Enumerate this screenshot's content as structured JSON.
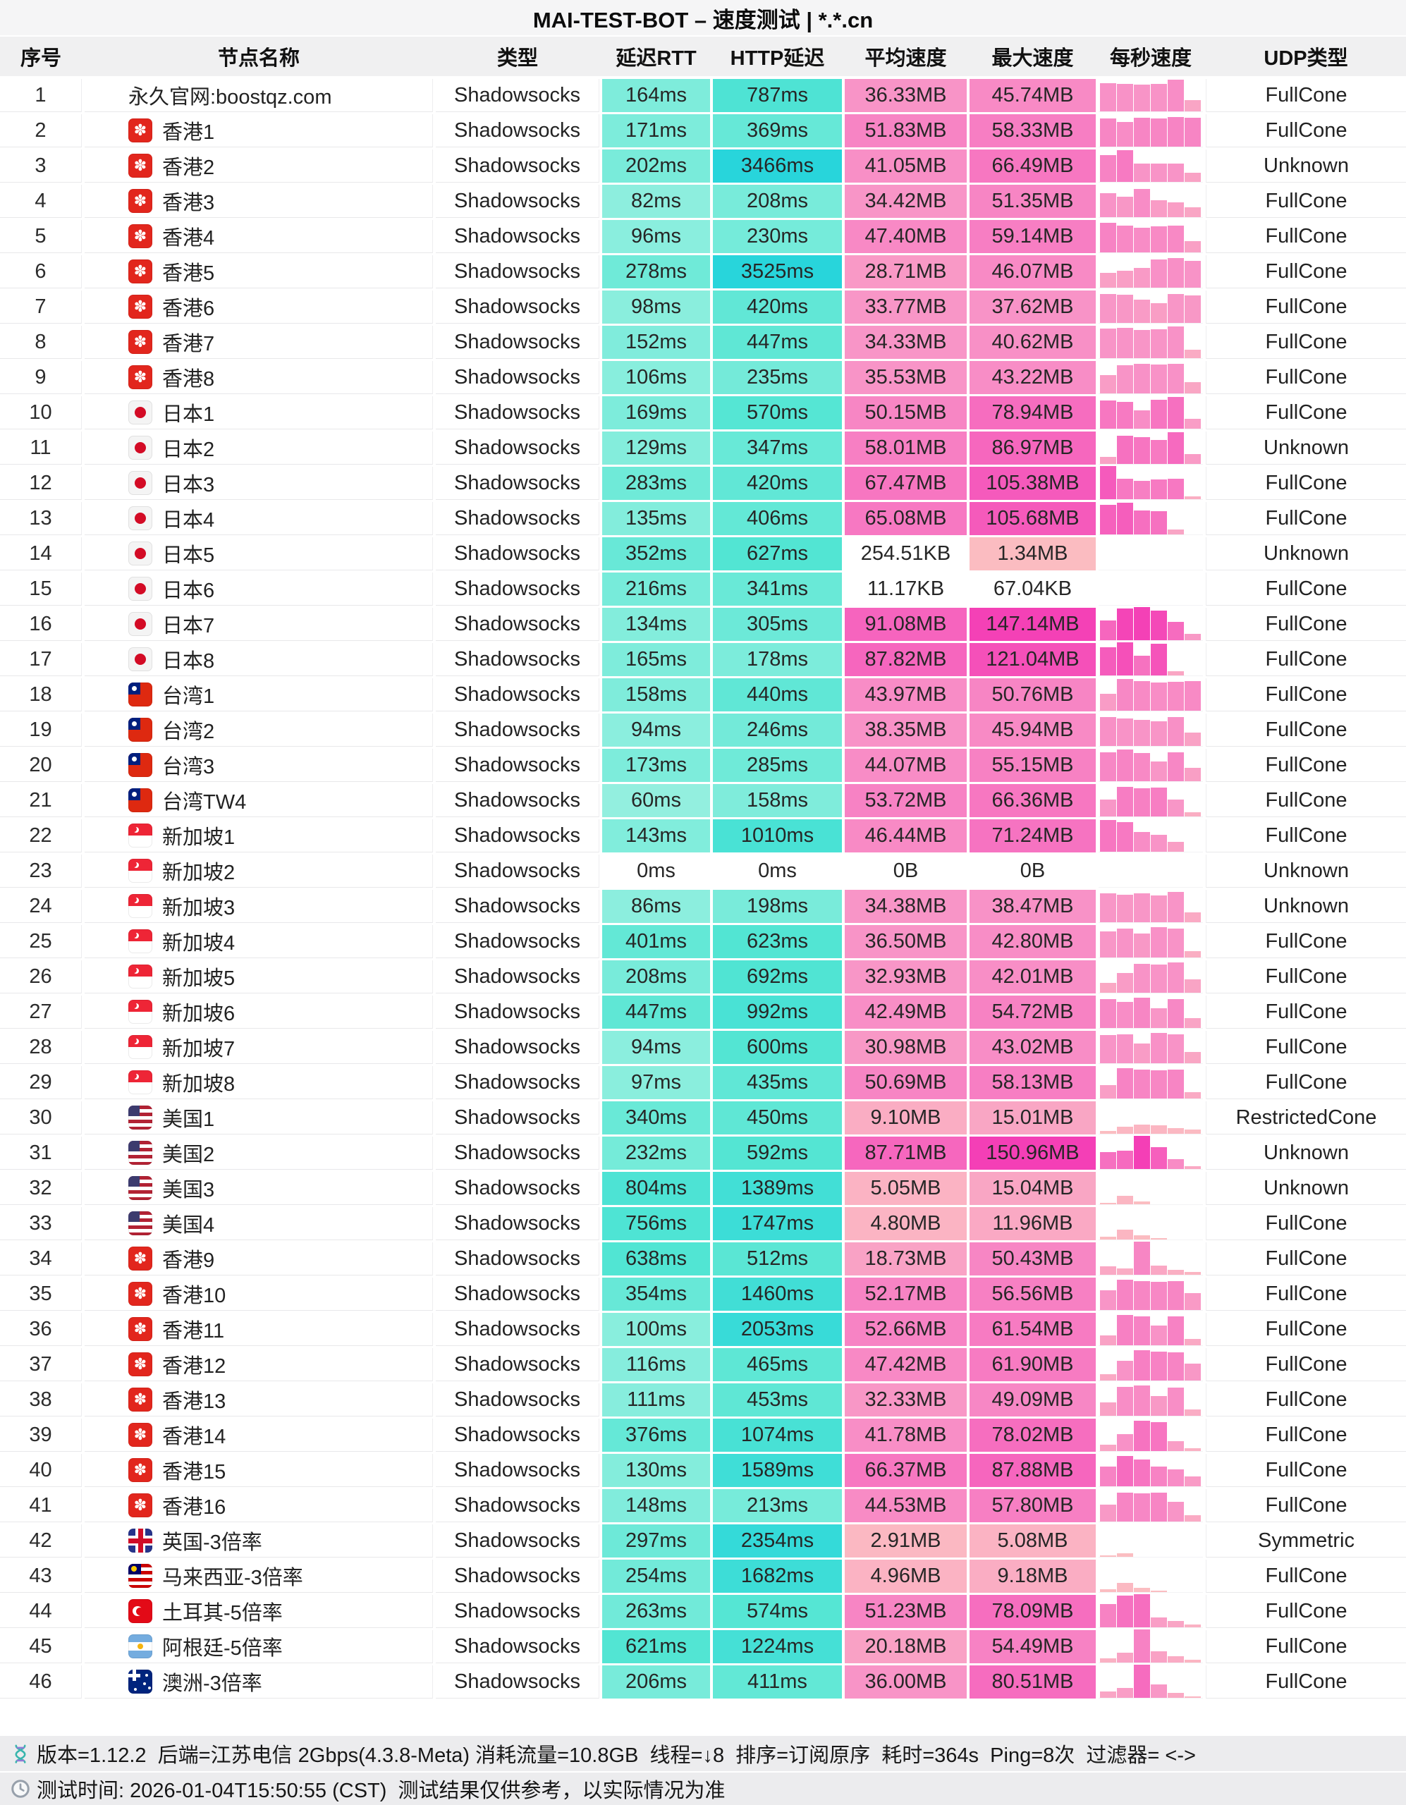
{
  "title": "MAI-TEST-BOT – 速度测试 | *.*.cn",
  "columns": [
    {
      "key": "seq",
      "label": "序号"
    },
    {
      "key": "name",
      "label": "节点名称"
    },
    {
      "key": "type",
      "label": "类型"
    },
    {
      "key": "rtt",
      "label": "延迟RTT"
    },
    {
      "key": "http",
      "label": "HTTP延迟"
    },
    {
      "key": "avg",
      "label": "平均速度"
    },
    {
      "key": "max",
      "label": "最大速度"
    },
    {
      "key": "persec",
      "label": "每秒速度"
    },
    {
      "key": "udp",
      "label": "UDP类型"
    }
  ],
  "colors": {
    "titlebar_bg": "#f5f5f6",
    "header_bg": "#f0f0f1",
    "footer_bg": "#ececee",
    "hairline": "#e8e8ea",
    "teal_ramp": [
      "#BDF6E7",
      "#52E5D3",
      "#28D5DB"
    ],
    "pink_ramp": [
      "#FCC6C0",
      "#F893C7",
      "#F43FB6"
    ]
  },
  "rows": [
    {
      "seq": 1,
      "flag": null,
      "name": "永久官网:boostqz.com",
      "type": "Shadowsocks",
      "rtt": "164ms",
      "rtt_v": 164,
      "http": "787ms",
      "http_v": 787,
      "avg": "36.33MB",
      "avg_v": 36.33,
      "max": "45.74MB",
      "max_v": 45.74,
      "udp": "FullCone",
      "bars": [
        0.86,
        0.84,
        0.8,
        0.82,
        0.95,
        0.35
      ]
    },
    {
      "seq": 2,
      "flag": "hk",
      "name": "香港1",
      "type": "Shadowsocks",
      "rtt": "171ms",
      "rtt_v": 171,
      "http": "369ms",
      "http_v": 369,
      "avg": "51.83MB",
      "avg_v": 51.83,
      "max": "58.33MB",
      "max_v": 58.33,
      "udp": "FullCone",
      "bars": [
        0.85,
        0.75,
        0.88,
        0.86,
        0.9,
        0.88
      ]
    },
    {
      "seq": 3,
      "flag": "hk",
      "name": "香港2",
      "type": "Shadowsocks",
      "rtt": "202ms",
      "rtt_v": 202,
      "http": "3466ms",
      "http_v": 3466,
      "avg": "41.05MB",
      "avg_v": 41.05,
      "max": "66.49MB",
      "max_v": 66.49,
      "udp": "Unknown",
      "bars": [
        0.8,
        0.95,
        0.55,
        0.55,
        0.55,
        0.28
      ]
    },
    {
      "seq": 4,
      "flag": "hk",
      "name": "香港3",
      "type": "Shadowsocks",
      "rtt": "82ms",
      "rtt_v": 82,
      "http": "208ms",
      "http_v": 208,
      "avg": "34.42MB",
      "avg_v": 34.42,
      "max": "51.35MB",
      "max_v": 51.35,
      "udp": "FullCone",
      "bars": [
        0.72,
        0.62,
        0.85,
        0.5,
        0.45,
        0.3
      ]
    },
    {
      "seq": 5,
      "flag": "hk",
      "name": "香港4",
      "type": "Shadowsocks",
      "rtt": "96ms",
      "rtt_v": 96,
      "http": "230ms",
      "http_v": 230,
      "avg": "47.40MB",
      "avg_v": 47.4,
      "max": "59.14MB",
      "max_v": 59.14,
      "udp": "FullCone",
      "bars": [
        0.9,
        0.8,
        0.75,
        0.78,
        0.8,
        0.35
      ]
    },
    {
      "seq": 6,
      "flag": "hk",
      "name": "香港5",
      "type": "Shadowsocks",
      "rtt": "278ms",
      "rtt_v": 278,
      "http": "3525ms",
      "http_v": 3525,
      "avg": "28.71MB",
      "avg_v": 28.71,
      "max": "46.07MB",
      "max_v": 46.07,
      "udp": "FullCone",
      "bars": [
        0.45,
        0.5,
        0.6,
        0.85,
        0.9,
        0.8
      ]
    },
    {
      "seq": 7,
      "flag": "hk",
      "name": "香港6",
      "type": "Shadowsocks",
      "rtt": "98ms",
      "rtt_v": 98,
      "http": "420ms",
      "http_v": 420,
      "avg": "33.77MB",
      "avg_v": 33.77,
      "max": "37.62MB",
      "max_v": 37.62,
      "udp": "FullCone",
      "bars": [
        0.88,
        0.85,
        0.7,
        0.6,
        0.88,
        0.82
      ]
    },
    {
      "seq": 8,
      "flag": "hk",
      "name": "香港7",
      "type": "Shadowsocks",
      "rtt": "152ms",
      "rtt_v": 152,
      "http": "447ms",
      "http_v": 447,
      "avg": "34.33MB",
      "avg_v": 34.33,
      "max": "40.62MB",
      "max_v": 40.62,
      "udp": "FullCone",
      "bars": [
        0.9,
        0.92,
        0.85,
        0.88,
        0.95,
        0.25
      ]
    },
    {
      "seq": 9,
      "flag": "hk",
      "name": "香港8",
      "type": "Shadowsocks",
      "rtt": "106ms",
      "rtt_v": 106,
      "http": "235ms",
      "http_v": 235,
      "avg": "35.53MB",
      "avg_v": 35.53,
      "max": "43.22MB",
      "max_v": 43.22,
      "udp": "FullCone",
      "bars": [
        0.55,
        0.85,
        0.9,
        0.88,
        0.9,
        0.35
      ]
    },
    {
      "seq": 10,
      "flag": "jp",
      "name": "日本1",
      "type": "Shadowsocks",
      "rtt": "169ms",
      "rtt_v": 169,
      "http": "570ms",
      "http_v": 570,
      "avg": "50.15MB",
      "avg_v": 50.15,
      "max": "78.94MB",
      "max_v": 78.94,
      "udp": "FullCone",
      "bars": [
        0.85,
        0.8,
        0.55,
        0.88,
        0.95,
        0.3
      ]
    },
    {
      "seq": 11,
      "flag": "jp",
      "name": "日本2",
      "type": "Shadowsocks",
      "rtt": "129ms",
      "rtt_v": 129,
      "http": "347ms",
      "http_v": 347,
      "avg": "58.01MB",
      "avg_v": 58.01,
      "max": "86.97MB",
      "max_v": 86.97,
      "udp": "Unknown",
      "bars": [
        0.22,
        0.85,
        0.8,
        0.72,
        0.95,
        0.3
      ]
    },
    {
      "seq": 12,
      "flag": "jp",
      "name": "日本3",
      "type": "Shadowsocks",
      "rtt": "283ms",
      "rtt_v": 283,
      "http": "420ms",
      "http_v": 420,
      "avg": "67.47MB",
      "avg_v": 67.47,
      "max": "105.38MB",
      "max_v": 105.38,
      "udp": "FullCone",
      "bars": [
        1,
        0.62,
        0.55,
        0.6,
        0.62,
        0.08
      ]
    },
    {
      "seq": 13,
      "flag": "jp",
      "name": "日本4",
      "type": "Shadowsocks",
      "rtt": "135ms",
      "rtt_v": 135,
      "http": "406ms",
      "http_v": 406,
      "avg": "65.08MB",
      "avg_v": 65.08,
      "max": "105.68MB",
      "max_v": 105.68,
      "udp": "FullCone",
      "bars": [
        0.9,
        0.95,
        0.72,
        0.7,
        0.15,
        0
      ]
    },
    {
      "seq": 14,
      "flag": "jp",
      "name": "日本5",
      "type": "Shadowsocks",
      "rtt": "352ms",
      "rtt_v": 352,
      "http": "627ms",
      "http_v": 627,
      "avg": "254.51KB",
      "avg_v": 0.25,
      "max": "1.34MB",
      "max_v": 1.34,
      "udp": "Unknown",
      "bars": []
    },
    {
      "seq": 15,
      "flag": "jp",
      "name": "日本6",
      "type": "Shadowsocks",
      "rtt": "216ms",
      "rtt_v": 216,
      "http": "341ms",
      "http_v": 341,
      "avg": "11.17KB",
      "avg_v": 0.011,
      "max": "67.04KB",
      "max_v": 0.065,
      "udp": "FullCone",
      "bars": []
    },
    {
      "seq": 16,
      "flag": "jp",
      "name": "日本7",
      "type": "Shadowsocks",
      "rtt": "134ms",
      "rtt_v": 134,
      "http": "305ms",
      "http_v": 305,
      "avg": "91.08MB",
      "avg_v": 91.08,
      "max": "147.14MB",
      "max_v": 147.14,
      "udp": "FullCone",
      "bars": [
        0.6,
        0.95,
        1,
        0.9,
        0.55,
        0.2
      ]
    },
    {
      "seq": 17,
      "flag": "jp",
      "name": "日本8",
      "type": "Shadowsocks",
      "rtt": "165ms",
      "rtt_v": 165,
      "http": "178ms",
      "http_v": 178,
      "avg": "87.82MB",
      "avg_v": 87.82,
      "max": "121.04MB",
      "max_v": 121.04,
      "udp": "FullCone",
      "bars": [
        0.85,
        1,
        0.6,
        0.95,
        0.12,
        0
      ]
    },
    {
      "seq": 18,
      "flag": "tw",
      "name": "台湾1",
      "type": "Shadowsocks",
      "rtt": "158ms",
      "rtt_v": 158,
      "http": "440ms",
      "http_v": 440,
      "avg": "43.97MB",
      "avg_v": 43.97,
      "max": "50.76MB",
      "max_v": 50.76,
      "udp": "FullCone",
      "bars": [
        0.5,
        0.95,
        0.9,
        0.85,
        0.88,
        0.9
      ]
    },
    {
      "seq": 19,
      "flag": "tw",
      "name": "台湾2",
      "type": "Shadowsocks",
      "rtt": "94ms",
      "rtt_v": 94,
      "http": "246ms",
      "http_v": 246,
      "avg": "38.35MB",
      "avg_v": 38.35,
      "max": "45.94MB",
      "max_v": 45.94,
      "udp": "FullCone",
      "bars": [
        0.88,
        0.82,
        0.78,
        0.75,
        0.88,
        0.4
      ]
    },
    {
      "seq": 20,
      "flag": "tw",
      "name": "台湾3",
      "type": "Shadowsocks",
      "rtt": "173ms",
      "rtt_v": 173,
      "http": "285ms",
      "http_v": 285,
      "avg": "44.07MB",
      "avg_v": 44.07,
      "max": "55.15MB",
      "max_v": 55.15,
      "udp": "FullCone",
      "bars": [
        0.88,
        0.95,
        0.85,
        0.6,
        0.88,
        0.4
      ]
    },
    {
      "seq": 21,
      "flag": "tw",
      "name": "台湾TW4",
      "type": "Shadowsocks",
      "rtt": "60ms",
      "rtt_v": 60,
      "http": "158ms",
      "http_v": 158,
      "avg": "53.72MB",
      "avg_v": 53.72,
      "max": "66.36MB",
      "max_v": 66.36,
      "udp": "FullCone",
      "bars": [
        0.5,
        0.9,
        0.85,
        0.88,
        0.5,
        0.12
      ]
    },
    {
      "seq": 22,
      "flag": "sg",
      "name": "新加坡1",
      "type": "Shadowsocks",
      "rtt": "143ms",
      "rtt_v": 143,
      "http": "1010ms",
      "http_v": 1010,
      "avg": "46.44MB",
      "avg_v": 46.44,
      "max": "71.24MB",
      "max_v": 71.24,
      "udp": "FullCone",
      "bars": [
        0.95,
        0.9,
        0.6,
        0.5,
        0.3,
        0
      ]
    },
    {
      "seq": 23,
      "flag": "sg",
      "name": "新加坡2",
      "type": "Shadowsocks",
      "rtt": "0ms",
      "rtt_v": 0,
      "http": "0ms",
      "http_v": 0,
      "avg": "0B",
      "avg_v": 0,
      "max": "0B",
      "max_v": 0,
      "udp": "Unknown",
      "bars": []
    },
    {
      "seq": 24,
      "flag": "sg",
      "name": "新加坡3",
      "type": "Shadowsocks",
      "rtt": "86ms",
      "rtt_v": 86,
      "http": "198ms",
      "http_v": 198,
      "avg": "34.38MB",
      "avg_v": 34.38,
      "max": "38.47MB",
      "max_v": 38.47,
      "udp": "Unknown",
      "bars": [
        0.88,
        0.84,
        0.88,
        0.8,
        0.92,
        0.3
      ]
    },
    {
      "seq": 25,
      "flag": "sg",
      "name": "新加坡4",
      "type": "Shadowsocks",
      "rtt": "401ms",
      "rtt_v": 401,
      "http": "623ms",
      "http_v": 623,
      "avg": "36.50MB",
      "avg_v": 36.5,
      "max": "42.80MB",
      "max_v": 42.8,
      "udp": "FullCone",
      "bars": [
        0.78,
        0.88,
        0.72,
        0.92,
        0.88,
        0.2
      ]
    },
    {
      "seq": 26,
      "flag": "sg",
      "name": "新加坡5",
      "type": "Shadowsocks",
      "rtt": "208ms",
      "rtt_v": 208,
      "http": "692ms",
      "http_v": 692,
      "avg": "32.93MB",
      "avg_v": 32.93,
      "max": "42.01MB",
      "max_v": 42.01,
      "udp": "FullCone",
      "bars": [
        0.3,
        0.6,
        0.88,
        0.85,
        0.92,
        0.4
      ]
    },
    {
      "seq": 27,
      "flag": "sg",
      "name": "新加坡6",
      "type": "Shadowsocks",
      "rtt": "447ms",
      "rtt_v": 447,
      "http": "992ms",
      "http_v": 992,
      "avg": "42.49MB",
      "avg_v": 42.49,
      "max": "54.72MB",
      "max_v": 54.72,
      "udp": "FullCone",
      "bars": [
        0.88,
        0.78,
        0.92,
        0.6,
        0.88,
        0.3
      ]
    },
    {
      "seq": 28,
      "flag": "sg",
      "name": "新加坡7",
      "type": "Shadowsocks",
      "rtt": "94ms",
      "rtt_v": 94,
      "http": "600ms",
      "http_v": 600,
      "avg": "30.98MB",
      "avg_v": 30.98,
      "max": "43.02MB",
      "max_v": 43.02,
      "udp": "FullCone",
      "bars": [
        0.85,
        0.88,
        0.6,
        0.92,
        0.88,
        0.35
      ]
    },
    {
      "seq": 29,
      "flag": "sg",
      "name": "新加坡8",
      "type": "Shadowsocks",
      "rtt": "97ms",
      "rtt_v": 97,
      "http": "435ms",
      "http_v": 435,
      "avg": "50.69MB",
      "avg_v": 50.69,
      "max": "58.13MB",
      "max_v": 58.13,
      "udp": "FullCone",
      "bars": [
        0.4,
        0.92,
        0.88,
        0.85,
        0.88,
        0.2
      ]
    },
    {
      "seq": 30,
      "flag": "us",
      "name": "美国1",
      "type": "Shadowsocks",
      "rtt": "340ms",
      "rtt_v": 340,
      "http": "450ms",
      "http_v": 450,
      "avg": "9.10MB",
      "avg_v": 9.1,
      "max": "15.01MB",
      "max_v": 15.01,
      "udp": "RestrictedCone",
      "bars": [
        0.08,
        0.22,
        0.28,
        0.25,
        0.18,
        0.12
      ]
    },
    {
      "seq": 31,
      "flag": "us",
      "name": "美国2",
      "type": "Shadowsocks",
      "rtt": "232ms",
      "rtt_v": 232,
      "http": "592ms",
      "http_v": 592,
      "avg": "87.71MB",
      "avg_v": 87.71,
      "max": "150.96MB",
      "max_v": 150.96,
      "udp": "Unknown",
      "bars": [
        0.5,
        0.55,
        1,
        0.65,
        0.3,
        0.08
      ]
    },
    {
      "seq": 32,
      "flag": "us",
      "name": "美国3",
      "type": "Shadowsocks",
      "rtt": "804ms",
      "rtt_v": 804,
      "http": "1389ms",
      "http_v": 1389,
      "avg": "5.05MB",
      "avg_v": 5.05,
      "max": "15.04MB",
      "max_v": 15.04,
      "udp": "Unknown",
      "bars": [
        0.04,
        0.25,
        0.08,
        0,
        0,
        0
      ]
    },
    {
      "seq": 33,
      "flag": "us",
      "name": "美国4",
      "type": "Shadowsocks",
      "rtt": "756ms",
      "rtt_v": 756,
      "http": "1747ms",
      "http_v": 1747,
      "avg": "4.80MB",
      "avg_v": 4.8,
      "max": "11.96MB",
      "max_v": 11.96,
      "udp": "FullCone",
      "bars": [
        0.08,
        0.3,
        0.12,
        0.04,
        0,
        0
      ]
    },
    {
      "seq": 34,
      "flag": "hk",
      "name": "香港9",
      "type": "Shadowsocks",
      "rtt": "638ms",
      "rtt_v": 638,
      "http": "512ms",
      "http_v": 512,
      "avg": "18.73MB",
      "avg_v": 18.73,
      "max": "50.43MB",
      "max_v": 50.43,
      "udp": "FullCone",
      "bars": [
        0.25,
        0.2,
        1,
        0.28,
        0.15,
        0.08
      ]
    },
    {
      "seq": 35,
      "flag": "hk",
      "name": "香港10",
      "type": "Shadowsocks",
      "rtt": "354ms",
      "rtt_v": 354,
      "http": "1460ms",
      "http_v": 1460,
      "avg": "52.17MB",
      "avg_v": 52.17,
      "max": "56.56MB",
      "max_v": 56.56,
      "udp": "FullCone",
      "bars": [
        0.6,
        0.92,
        0.88,
        0.85,
        0.88,
        0.5
      ]
    },
    {
      "seq": 36,
      "flag": "hk",
      "name": "香港11",
      "type": "Shadowsocks",
      "rtt": "100ms",
      "rtt_v": 100,
      "http": "2053ms",
      "http_v": 2053,
      "avg": "52.66MB",
      "avg_v": 52.66,
      "max": "61.54MB",
      "max_v": 61.54,
      "udp": "FullCone",
      "bars": [
        0.3,
        0.92,
        0.88,
        0.6,
        0.88,
        0.2
      ]
    },
    {
      "seq": 37,
      "flag": "hk",
      "name": "香港12",
      "type": "Shadowsocks",
      "rtt": "116ms",
      "rtt_v": 116,
      "http": "465ms",
      "http_v": 465,
      "avg": "47.42MB",
      "avg_v": 47.42,
      "max": "61.90MB",
      "max_v": 61.9,
      "udp": "FullCone",
      "bars": [
        0.2,
        0.6,
        0.92,
        0.88,
        0.85,
        0.5
      ]
    },
    {
      "seq": 38,
      "flag": "hk",
      "name": "香港13",
      "type": "Shadowsocks",
      "rtt": "111ms",
      "rtt_v": 111,
      "http": "453ms",
      "http_v": 453,
      "avg": "32.33MB",
      "avg_v": 32.33,
      "max": "49.09MB",
      "max_v": 49.09,
      "udp": "FullCone",
      "bars": [
        0.4,
        0.88,
        0.92,
        0.6,
        0.85,
        0.2
      ]
    },
    {
      "seq": 39,
      "flag": "hk",
      "name": "香港14",
      "type": "Shadowsocks",
      "rtt": "376ms",
      "rtt_v": 376,
      "http": "1074ms",
      "http_v": 1074,
      "avg": "41.78MB",
      "avg_v": 41.78,
      "max": "78.02MB",
      "max_v": 78.02,
      "udp": "FullCone",
      "bars": [
        0.2,
        0.5,
        0.92,
        0.88,
        0.3,
        0.08
      ]
    },
    {
      "seq": 40,
      "flag": "hk",
      "name": "香港15",
      "type": "Shadowsocks",
      "rtt": "130ms",
      "rtt_v": 130,
      "http": "1589ms",
      "http_v": 1589,
      "avg": "66.37MB",
      "avg_v": 66.37,
      "max": "87.88MB",
      "max_v": 87.88,
      "udp": "FullCone",
      "bars": [
        0.6,
        0.92,
        0.8,
        0.6,
        0.5,
        0.3
      ]
    },
    {
      "seq": 41,
      "flag": "hk",
      "name": "香港16",
      "type": "Shadowsocks",
      "rtt": "148ms",
      "rtt_v": 148,
      "http": "213ms",
      "http_v": 213,
      "avg": "44.53MB",
      "avg_v": 44.53,
      "max": "57.80MB",
      "max_v": 57.8,
      "udp": "FullCone",
      "bars": [
        0.5,
        0.88,
        0.85,
        0.88,
        0.6,
        0.2
      ]
    },
    {
      "seq": 42,
      "flag": "gb",
      "name": "英国-3倍率",
      "type": "Shadowsocks",
      "rtt": "297ms",
      "rtt_v": 297,
      "http": "2354ms",
      "http_v": 2354,
      "avg": "2.91MB",
      "avg_v": 2.91,
      "max": "5.08MB",
      "max_v": 5.08,
      "udp": "Symmetric",
      "bars": [
        0.04,
        0.1,
        0,
        0,
        0,
        0
      ]
    },
    {
      "seq": 43,
      "flag": "my",
      "name": "马来西亚-3倍率",
      "type": "Shadowsocks",
      "rtt": "254ms",
      "rtt_v": 254,
      "http": "1682ms",
      "http_v": 1682,
      "avg": "4.96MB",
      "avg_v": 4.96,
      "max": "9.18MB",
      "max_v": 9.18,
      "udp": "FullCone",
      "bars": [
        0.08,
        0.28,
        0.12,
        0.04,
        0,
        0
      ]
    },
    {
      "seq": 44,
      "flag": "tr",
      "name": "土耳其-5倍率",
      "type": "Shadowsocks",
      "rtt": "263ms",
      "rtt_v": 263,
      "http": "574ms",
      "http_v": 574,
      "avg": "51.23MB",
      "avg_v": 51.23,
      "max": "78.09MB",
      "max_v": 78.09,
      "udp": "FullCone",
      "bars": [
        0.7,
        0.95,
        1,
        0.3,
        0.2,
        0.08
      ]
    },
    {
      "seq": 45,
      "flag": "ar",
      "name": "阿根廷-5倍率",
      "type": "Shadowsocks",
      "rtt": "621ms",
      "rtt_v": 621,
      "http": "1224ms",
      "http_v": 1224,
      "avg": "20.18MB",
      "avg_v": 20.18,
      "max": "54.49MB",
      "max_v": 54.49,
      "udp": "FullCone",
      "bars": [
        0.12,
        0.3,
        1,
        0.35,
        0.2,
        0.08
      ]
    },
    {
      "seq": 46,
      "flag": "au",
      "name": "澳洲-3倍率",
      "type": "Shadowsocks",
      "rtt": "206ms",
      "rtt_v": 206,
      "http": "411ms",
      "http_v": 411,
      "avg": "36.00MB",
      "avg_v": 36,
      "max": "80.51MB",
      "max_v": 80.51,
      "udp": "FullCone",
      "bars": [
        0.2,
        0.3,
        1,
        0.4,
        0.15,
        0.05
      ]
    }
  ],
  "footer": {
    "meta": "版本=1.12.2  后端=江苏电信 2Gbps(4.3.8-Meta) 消耗流量=10.8GB  线程=↓8  排序=订阅原序  耗时=364s  Ping=8次  过滤器= <->",
    "time": "测试时间: 2026-01-04T15:50:55 (CST)  测试结果仅供参考，以实际情况为准"
  }
}
